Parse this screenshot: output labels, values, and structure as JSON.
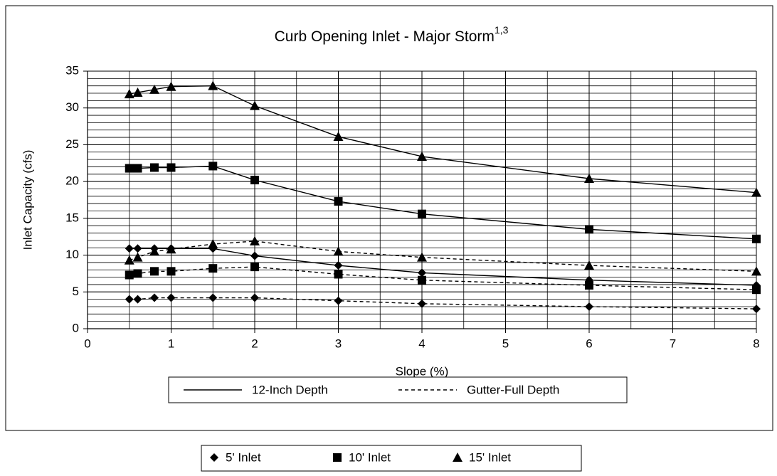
{
  "chart_data": {
    "type": "line",
    "title": "Curb Opening Inlet - Major Storm",
    "title_superscript": "1,3",
    "x_label": "Slope (%)",
    "y_label": "Inlet Capacity (cfs)",
    "x": [
      0.5,
      0.6,
      0.8,
      1,
      1.5,
      2,
      3,
      4,
      6,
      8
    ],
    "xlim": [
      0,
      8
    ],
    "xticks": [
      0,
      1,
      2,
      3,
      4,
      5,
      6,
      7,
      8
    ],
    "ylim": [
      0,
      35
    ],
    "yticks": [
      0,
      5,
      10,
      15,
      20,
      25,
      30,
      35
    ],
    "grid": true,
    "grid_minor": {
      "x": 0.5,
      "y": 1
    },
    "color": "#000000",
    "line_styles": [
      {
        "name": "12-Inch Depth",
        "dash": "solid"
      },
      {
        "name": "Gutter-Full Depth",
        "dash": "dashed"
      }
    ],
    "markers": [
      {
        "name": "5' Inlet",
        "marker": "diamond"
      },
      {
        "name": "10' Inlet",
        "marker": "square"
      },
      {
        "name": "15' Inlet",
        "marker": "triangle"
      }
    ],
    "series": [
      {
        "inlet": "15' Inlet",
        "depth": "12-Inch Depth",
        "values": [
          31.9,
          32.1,
          32.5,
          32.9,
          33.0,
          30.3,
          26.1,
          23.4,
          20.4,
          18.5
        ]
      },
      {
        "inlet": "10' Inlet",
        "depth": "12-Inch Depth",
        "values": [
          21.8,
          21.8,
          21.9,
          21.9,
          22.1,
          20.2,
          17.3,
          15.6,
          13.5,
          12.2
        ]
      },
      {
        "inlet": "5' Inlet",
        "depth": "12-Inch Depth",
        "values": [
          10.9,
          10.9,
          10.9,
          10.9,
          10.9,
          9.9,
          8.6,
          7.6,
          6.6,
          5.9
        ]
      },
      {
        "inlet": "15' Inlet",
        "depth": "Gutter-Full Depth",
        "values": [
          9.3,
          9.7,
          10.5,
          10.8,
          11.5,
          11.9,
          10.5,
          9.7,
          8.6,
          7.8
        ]
      },
      {
        "inlet": "10' Inlet",
        "depth": "Gutter-Full Depth",
        "values": [
          7.3,
          7.5,
          7.8,
          7.8,
          8.2,
          8.4,
          7.4,
          6.6,
          5.9,
          5.3
        ]
      },
      {
        "inlet": "5' Inlet",
        "depth": "Gutter-Full Depth",
        "values": [
          4.0,
          4.0,
          4.2,
          4.2,
          4.2,
          4.2,
          3.8,
          3.4,
          3.0,
          2.7
        ]
      }
    ]
  }
}
